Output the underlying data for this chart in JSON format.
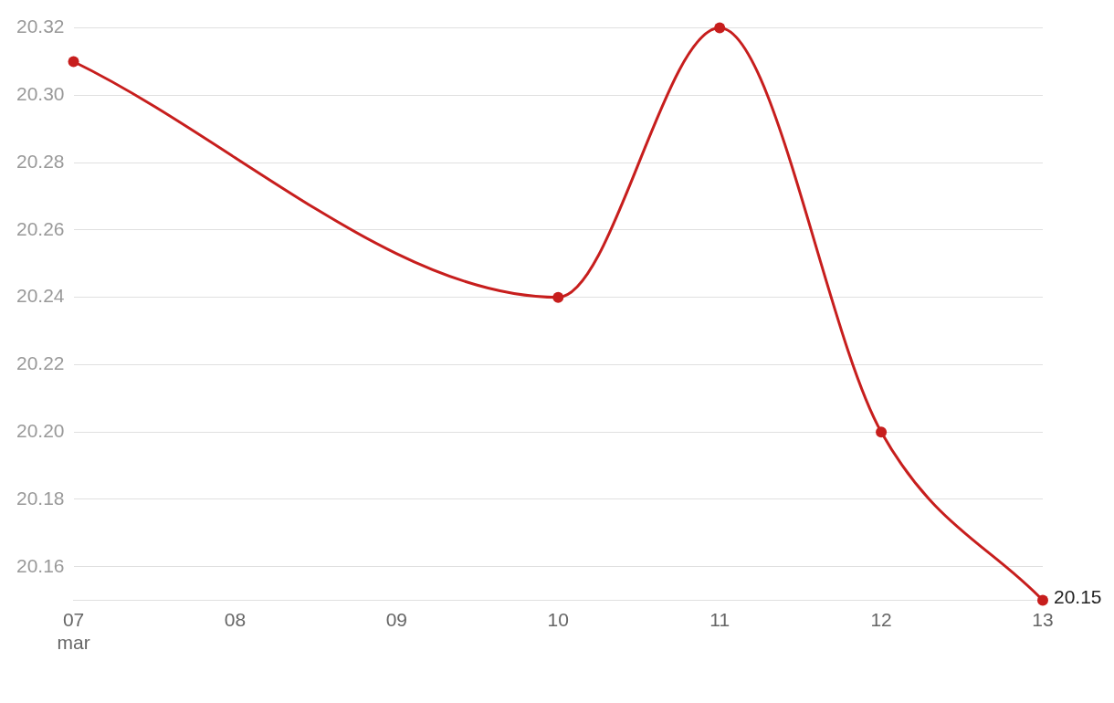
{
  "chart_data": {
    "type": "line",
    "x": [
      "--03-07",
      "--03-10",
      "--03-11",
      "--03-12",
      "--03-13"
    ],
    "series": [
      {
        "color": "#c71e1d",
        "values": [
          20.31,
          20.24,
          20.32,
          20.2,
          20.15
        ],
        "value_labels": [
          null,
          null,
          null,
          null,
          "20.15"
        ]
      }
    ],
    "xlim": [
      "--03-07",
      "--03-13"
    ],
    "xticks": [
      {
        "value": "--03-07",
        "label": "07\nmar"
      },
      {
        "value": "--03-08",
        "label": "08"
      },
      {
        "value": "--03-09",
        "label": "09"
      },
      {
        "value": "--03-10",
        "label": "10"
      },
      {
        "value": "--03-11",
        "label": "11"
      },
      {
        "value": "--03-12",
        "label": "12"
      },
      {
        "value": "--03-13",
        "label": "13"
      }
    ],
    "ylim": [
      20.15,
      20.32
    ],
    "yticks": [
      {
        "value": 20.16,
        "label": "20.16"
      },
      {
        "value": 20.18,
        "label": "20.18"
      },
      {
        "value": 20.2,
        "label": "20.20"
      },
      {
        "value": 20.22,
        "label": "20.22"
      },
      {
        "value": 20.24,
        "label": "20.24"
      },
      {
        "value": 20.26,
        "label": "20.26"
      },
      {
        "value": 20.28,
        "label": "20.28"
      },
      {
        "value": 20.3,
        "label": "20.30"
      },
      {
        "value": 20.32,
        "label": "20.32"
      }
    ],
    "grid": "y",
    "legend": false,
    "marker": "circle",
    "line_style": "solid"
  }
}
